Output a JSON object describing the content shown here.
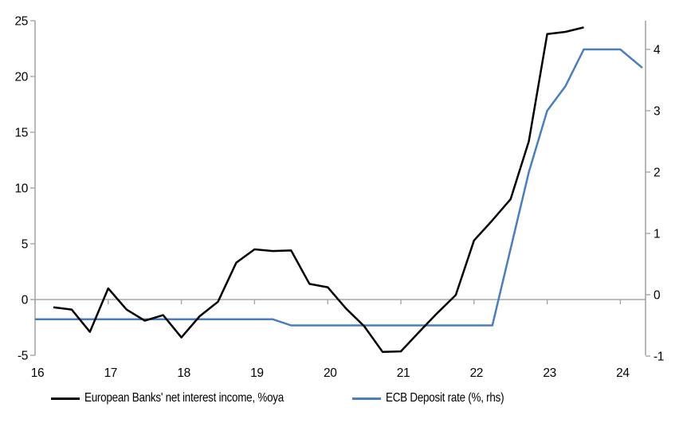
{
  "chart_data": {
    "type": "line",
    "title": "",
    "legend_position": "bottom",
    "grid": "zero-line-only",
    "colors": {
      "axis": "#A6A6A6",
      "text": "#000000",
      "nii_line": "#000000",
      "deposit_line": "#4A7EBB"
    },
    "x_axis": {
      "ticks": [
        16,
        17,
        18,
        19,
        20,
        21,
        22,
        23,
        24
      ],
      "range": [
        16,
        24.35
      ]
    },
    "y_axis_left": {
      "ticks": [
        25,
        20,
        15,
        10,
        5,
        0,
        -5
      ],
      "range": [
        -5,
        25
      ]
    },
    "y_axis_right": {
      "ticks": [
        4,
        3,
        2,
        1,
        0,
        -1
      ],
      "range": [
        -1.05,
        4.45
      ]
    },
    "series": [
      {
        "name": "European Banks' net interest income, %oya",
        "axis": "left",
        "x": [
          16.25,
          16.5,
          16.75,
          17.0,
          17.25,
          17.5,
          17.75,
          18.0,
          18.25,
          18.5,
          18.75,
          19.0,
          19.25,
          19.5,
          19.75,
          20.0,
          20.25,
          20.5,
          20.75,
          21.0,
          21.25,
          21.5,
          21.75,
          22.0,
          22.25,
          22.5,
          22.75,
          23.0,
          23.25,
          23.5
        ],
        "values": [
          -0.7,
          -0.9,
          -2.9,
          1.0,
          -0.9,
          -1.9,
          -1.4,
          -3.4,
          -1.5,
          -0.2,
          3.3,
          4.5,
          4.35,
          4.4,
          1.4,
          1.1,
          -0.8,
          -2.4,
          -4.7,
          -4.65,
          -2.9,
          -1.2,
          0.4,
          5.3,
          7.1,
          9.0,
          14.2,
          23.8,
          24.0,
          24.4
        ]
      },
      {
        "name": "ECB Deposit rate (%, rhs)",
        "axis": "right",
        "x": [
          16.0,
          16.25,
          16.5,
          16.75,
          17.0,
          17.25,
          17.5,
          17.75,
          18.0,
          18.25,
          18.5,
          18.75,
          19.0,
          19.25,
          19.5,
          19.75,
          20.0,
          20.25,
          20.5,
          20.75,
          21.0,
          21.25,
          21.5,
          21.75,
          22.0,
          22.25,
          22.5,
          22.75,
          23.0,
          23.25,
          23.5,
          23.75,
          24.0,
          24.3
        ],
        "values": [
          -0.4,
          -0.4,
          -0.4,
          -0.4,
          -0.4,
          -0.4,
          -0.4,
          -0.4,
          -0.4,
          -0.4,
          -0.4,
          -0.4,
          -0.4,
          -0.4,
          -0.5,
          -0.5,
          -0.5,
          -0.5,
          -0.5,
          -0.5,
          -0.5,
          -0.5,
          -0.5,
          -0.5,
          -0.5,
          -0.5,
          0.75,
          2.0,
          3.0,
          3.4,
          4.0,
          4.0,
          4.0,
          3.7
        ]
      }
    ]
  }
}
